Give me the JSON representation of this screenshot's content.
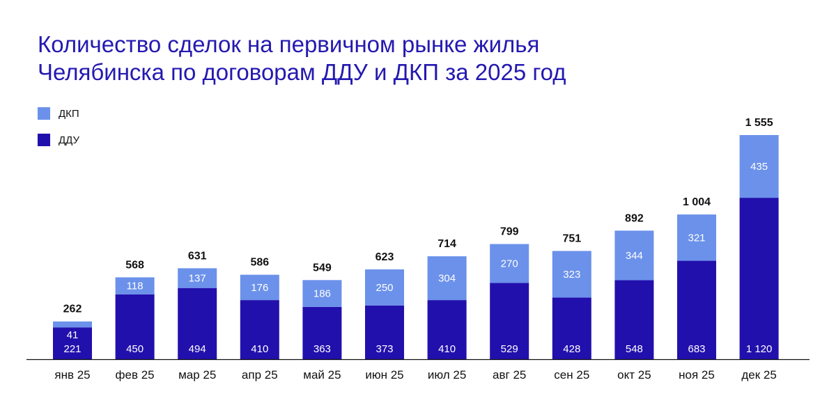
{
  "title_line1": "Количество сделок на первичном рынке жилья",
  "title_line2": "Челябинска по договорам ДДУ и ДКП за 2025 год",
  "colors": {
    "dkp": "#6b91ea",
    "ddu": "#2210ac",
    "title": "#2419b0"
  },
  "chart_data": {
    "type": "bar",
    "stacked": true,
    "title": "Количество сделок на первичном рынке жилья Челябинска по договорам ДДУ и ДКП за 2025 год",
    "categories": [
      "янв 25",
      "фев 25",
      "мар 25",
      "апр 25",
      "май 25",
      "июн 25",
      "июл 25",
      "авг 25",
      "сен 25",
      "окт 25",
      "ноя 25",
      "дек 25"
    ],
    "series": [
      {
        "name": "ДДУ",
        "values": [
          221,
          450,
          494,
          410,
          363,
          373,
          410,
          529,
          428,
          548,
          683,
          1120
        ],
        "labels": [
          "221",
          "450",
          "494",
          "410",
          "363",
          "373",
          "410",
          "529",
          "428",
          "548",
          "683",
          "1 120"
        ]
      },
      {
        "name": "ДКП",
        "values": [
          41,
          118,
          137,
          176,
          186,
          250,
          304,
          270,
          323,
          344,
          321,
          435
        ],
        "labels": [
          "41",
          "118",
          "137",
          "176",
          "186",
          "250",
          "304",
          "270",
          "323",
          "344",
          "321",
          "435"
        ]
      }
    ],
    "totals": [
      262,
      568,
      631,
      586,
      549,
      623,
      714,
      799,
      751,
      892,
      1004,
      1555
    ],
    "total_labels": [
      "262",
      "568",
      "631",
      "586",
      "549",
      "623",
      "714",
      "799",
      "751",
      "892",
      "1 004",
      "1 555"
    ],
    "legend": [
      "ДКП",
      "ДДУ"
    ],
    "xlabel": "",
    "ylabel": "",
    "ylim": [
      0,
      1555
    ],
    "grid": false
  }
}
